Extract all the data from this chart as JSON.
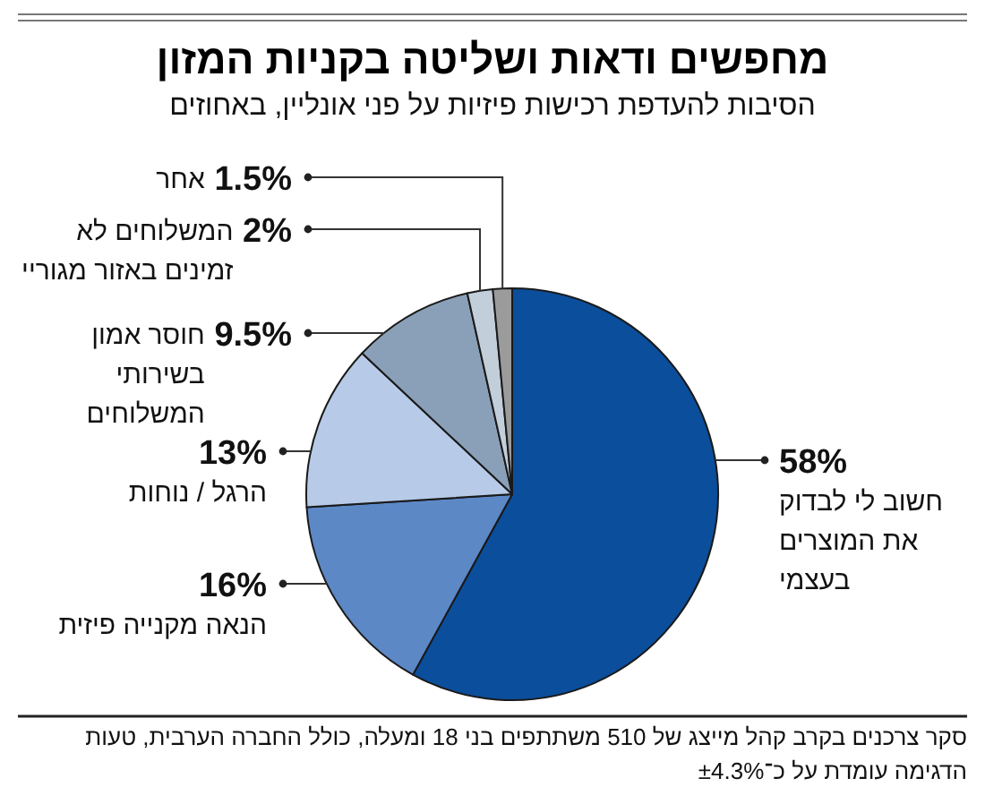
{
  "chart_data": {
    "type": "pie",
    "title": "מחפשים ודאות ושליטה בקניות המזון",
    "subtitle": "הסיבות להעדפת רכישות פיזיות על פני אונליין, באחוזים",
    "categories": [
      "חשוב לי לבדוק את המוצרים בעצמי",
      "הנאה מקנייה פיזית",
      "הרגל / נוחות",
      "חוסר אמון בשירותי המשלוחים",
      "המשלוחים לא זמינים באזור מגוריי",
      "אחר"
    ],
    "values": [
      58,
      16,
      13,
      9.5,
      2,
      1.5
    ],
    "value_labels": [
      "58%",
      "16%",
      "13%",
      "9.5%",
      "2%",
      "1.5%"
    ],
    "colors": [
      "#0b4e9c",
      "#5c88c6",
      "#b7cae8",
      "#8aa0b8",
      "#c3cedb",
      "#9b9b9b"
    ],
    "annotations": [
      "סקר צרכנים בקרב קהל מייצג של 510 משתתפים בני 18 ומעלה, כולל החברה הערבית, טעות הדגימה עומדת על כ־±4.3%"
    ]
  }
}
